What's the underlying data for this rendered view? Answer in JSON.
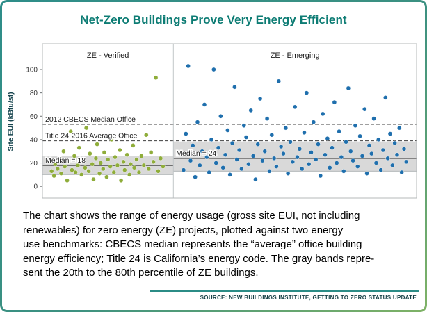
{
  "title": "Net-Zero Buildings Prove Very Energy Efficient",
  "caption": {
    "lines": [
      "The chart shows the range of energy usage (gross site EUI, not including",
      "renewables) for zero energy (ZE) projects, plotted against two energy",
      "use benchmarks: CBECS median represents the “average” office building",
      "energy efficiency; Title 24 is California’s energy code. The gray bands repre-",
      "sent the 20th to the 80th percentile of ZE buildings."
    ]
  },
  "source": "SOURCE: NEW BUILDINGS INSTITUTE, GETTING TO ZERO STATUS UPDATE",
  "colors": {
    "title_teal": "#0d7c74",
    "frame_teal": "#2e8d89",
    "frame_green": "#7fb266"
  },
  "chart_data": {
    "type": "scatter",
    "ylabel": "Site EUI (kBtu/sf)",
    "yticks": [
      0,
      20,
      40,
      60,
      80,
      100
    ],
    "ylim": [
      -10,
      122
    ],
    "band_color": "#d9d9d9",
    "band_edge_color": "#a8adaf",
    "ref_line_color": "#3f3f3f",
    "median_line_color": "#2f2f2f",
    "reference_lines": [
      {
        "label": "2012 CBECS Median Office",
        "value": 53
      },
      {
        "label": "Title 24-2016 Average Office",
        "value": 39
      }
    ],
    "panels": [
      {
        "label": "ZE - Verified",
        "color": "#8FAD3A",
        "width_frac": 0.35,
        "median": 18,
        "median_label": "Median = 18",
        "band": [
          10,
          26
        ],
        "points": [
          [
            0.03,
            13
          ],
          [
            0.05,
            9
          ],
          [
            0.06,
            19
          ],
          [
            0.08,
            15
          ],
          [
            0.1,
            24
          ],
          [
            0.11,
            11
          ],
          [
            0.13,
            30
          ],
          [
            0.14,
            17
          ],
          [
            0.16,
            5
          ],
          [
            0.17,
            21
          ],
          [
            0.19,
            47
          ],
          [
            0.2,
            14
          ],
          [
            0.22,
            26
          ],
          [
            0.23,
            12
          ],
          [
            0.25,
            18
          ],
          [
            0.26,
            33
          ],
          [
            0.28,
            10
          ],
          [
            0.29,
            22
          ],
          [
            0.31,
            16
          ],
          [
            0.32,
            50
          ],
          [
            0.34,
            13
          ],
          [
            0.35,
            28
          ],
          [
            0.37,
            19
          ],
          [
            0.38,
            6
          ],
          [
            0.4,
            24
          ],
          [
            0.41,
            36
          ],
          [
            0.43,
            11
          ],
          [
            0.44,
            20
          ],
          [
            0.46,
            15
          ],
          [
            0.47,
            29
          ],
          [
            0.49,
            8
          ],
          [
            0.5,
            23
          ],
          [
            0.52,
            17
          ],
          [
            0.53,
            40
          ],
          [
            0.55,
            12
          ],
          [
            0.56,
            25
          ],
          [
            0.58,
            18
          ],
          [
            0.6,
            31
          ],
          [
            0.61,
            5
          ],
          [
            0.63,
            21
          ],
          [
            0.64,
            14
          ],
          [
            0.66,
            27
          ],
          [
            0.68,
            10
          ],
          [
            0.69,
            19
          ],
          [
            0.71,
            35
          ],
          [
            0.72,
            16
          ],
          [
            0.74,
            23
          ],
          [
            0.76,
            12
          ],
          [
            0.78,
            26
          ],
          [
            0.8,
            18
          ],
          [
            0.82,
            44
          ],
          [
            0.84,
            15
          ],
          [
            0.86,
            29
          ],
          [
            0.88,
            21
          ],
          [
            0.9,
            93
          ],
          [
            0.92,
            13
          ],
          [
            0.94,
            24
          ],
          [
            0.96,
            17
          ]
        ]
      },
      {
        "label": "ZE - Emerging",
        "color": "#1F6FAD",
        "width_frac": 0.65,
        "median": 24,
        "median_label": "Median = 24",
        "band": [
          13,
          38
        ],
        "points": [
          [
            0.01,
            28
          ],
          [
            0.02,
            14
          ],
          [
            0.03,
            45
          ],
          [
            0.04,
            103
          ],
          [
            0.05,
            22
          ],
          [
            0.06,
            35
          ],
          [
            0.07,
            8
          ],
          [
            0.08,
            55
          ],
          [
            0.09,
            18
          ],
          [
            0.1,
            30
          ],
          [
            0.11,
            70
          ],
          [
            0.12,
            25
          ],
          [
            0.13,
            12
          ],
          [
            0.14,
            40
          ],
          [
            0.15,
            100
          ],
          [
            0.16,
            20
          ],
          [
            0.17,
            33
          ],
          [
            0.18,
            60
          ],
          [
            0.19,
            16
          ],
          [
            0.2,
            27
          ],
          [
            0.21,
            48
          ],
          [
            0.22,
            10
          ],
          [
            0.23,
            37
          ],
          [
            0.24,
            85
          ],
          [
            0.25,
            23
          ],
          [
            0.26,
            31
          ],
          [
            0.27,
            15
          ],
          [
            0.28,
            52
          ],
          [
            0.29,
            42
          ],
          [
            0.3,
            19
          ],
          [
            0.31,
            65
          ],
          [
            0.32,
            26
          ],
          [
            0.33,
            6
          ],
          [
            0.34,
            36
          ],
          [
            0.35,
            75
          ],
          [
            0.36,
            22
          ],
          [
            0.37,
            30
          ],
          [
            0.38,
            58
          ],
          [
            0.39,
            13
          ],
          [
            0.4,
            44
          ],
          [
            0.41,
            24
          ],
          [
            0.42,
            17
          ],
          [
            0.43,
            90
          ],
          [
            0.44,
            34
          ],
          [
            0.45,
            28
          ],
          [
            0.46,
            50
          ],
          [
            0.47,
            11
          ],
          [
            0.48,
            38
          ],
          [
            0.49,
            21
          ],
          [
            0.5,
            68
          ],
          [
            0.51,
            25
          ],
          [
            0.52,
            32
          ],
          [
            0.53,
            15
          ],
          [
            0.54,
            46
          ],
          [
            0.55,
            80
          ],
          [
            0.56,
            19
          ],
          [
            0.57,
            29
          ],
          [
            0.58,
            55
          ],
          [
            0.59,
            23
          ],
          [
            0.6,
            36
          ],
          [
            0.61,
            9
          ],
          [
            0.62,
            62
          ],
          [
            0.63,
            27
          ],
          [
            0.64,
            41
          ],
          [
            0.65,
            16
          ],
          [
            0.66,
            33
          ],
          [
            0.67,
            72
          ],
          [
            0.68,
            20
          ],
          [
            0.69,
            47
          ],
          [
            0.7,
            25
          ],
          [
            0.71,
            13
          ],
          [
            0.72,
            38
          ],
          [
            0.73,
            84
          ],
          [
            0.74,
            30
          ],
          [
            0.75,
            22
          ],
          [
            0.76,
            52
          ],
          [
            0.77,
            17
          ],
          [
            0.78,
            43
          ],
          [
            0.79,
            26
          ],
          [
            0.8,
            66
          ],
          [
            0.81,
            11
          ],
          [
            0.82,
            35
          ],
          [
            0.83,
            28
          ],
          [
            0.84,
            58
          ],
          [
            0.85,
            20
          ],
          [
            0.86,
            40
          ],
          [
            0.87,
            14
          ],
          [
            0.88,
            31
          ],
          [
            0.89,
            76
          ],
          [
            0.9,
            24
          ],
          [
            0.91,
            45
          ],
          [
            0.92,
            18
          ],
          [
            0.93,
            37
          ],
          [
            0.94,
            27
          ],
          [
            0.95,
            50
          ],
          [
            0.96,
            12
          ],
          [
            0.97,
            32
          ],
          [
            0.98,
            21
          ]
        ]
      }
    ]
  }
}
